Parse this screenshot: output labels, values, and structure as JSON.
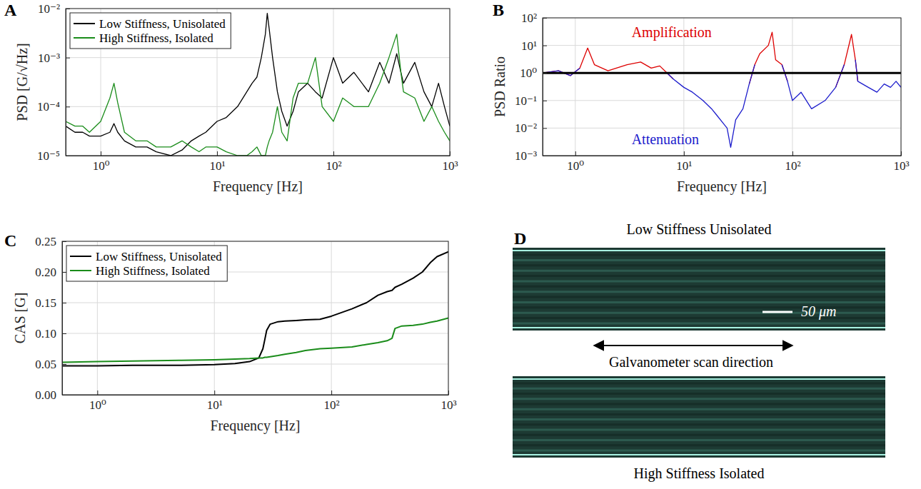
{
  "chart_data": [
    {
      "type": "line",
      "panel_label": "A",
      "xlabel": "Frequency [Hz]",
      "ylabel": "PSD [G/√Hz]",
      "log": true,
      "grid": true,
      "legend": "top-left",
      "xlim": [
        0.5,
        1000
      ],
      "xticks": [
        {
          "value": 1,
          "label": "10⁰"
        },
        {
          "value": 10,
          "label": "10¹"
        },
        {
          "value": 100,
          "label": "10²"
        },
        {
          "value": 1000,
          "label": "10³"
        }
      ],
      "ylim": [
        1e-05,
        0.01
      ],
      "yticks": [
        {
          "value": 1e-05,
          "label": "10⁻⁵"
        },
        {
          "value": 0.0001,
          "label": "10⁻⁴"
        },
        {
          "value": 0.001,
          "label": "10⁻³"
        },
        {
          "value": 0.01,
          "label": "10⁻²"
        }
      ],
      "x": [
        0.5,
        0.6,
        0.7,
        0.8,
        1.0,
        1.2,
        1.3,
        1.4,
        1.6,
        2,
        2.5,
        3,
        4,
        5,
        6,
        7,
        8,
        10,
        12,
        15,
        18,
        20,
        22,
        24,
        26,
        27,
        28,
        30,
        33,
        36,
        40,
        45,
        50,
        60,
        70,
        80,
        100,
        120,
        150,
        200,
        250,
        300,
        350,
        380,
        400,
        500,
        600,
        700,
        800,
        900,
        1000
      ],
      "series": [
        {
          "name": "Low Stiffness, Unisolated",
          "color": "#000000",
          "values": [
            4e-05,
            3e-05,
            3e-05,
            2.5e-05,
            2.5e-05,
            3e-05,
            4.5e-05,
            3e-05,
            2e-05,
            1.5e-05,
            1.5e-05,
            1.2e-05,
            1e-05,
            1.3e-05,
            2e-05,
            2.5e-05,
            3e-05,
            5e-05,
            6e-05,
            0.0001,
            0.0002,
            0.0003,
            0.0004,
            0.001,
            0.003,
            0.008,
            0.004,
            0.001,
            0.0002,
            8e-05,
            4e-05,
            8e-05,
            0.0002,
            0.0003,
            0.0002,
            0.00015,
            0.001,
            0.0003,
            0.0005,
            0.0002,
            0.0008,
            0.0003,
            0.0012,
            0.0005,
            0.0003,
            0.0008,
            0.0002,
            0.0001,
            0.0003,
            0.0001,
            4e-05
          ]
        },
        {
          "name": "High Stiffness, Isolated",
          "color": "#1a8c1a",
          "values": [
            5e-05,
            4e-05,
            4e-05,
            3e-05,
            5e-05,
            0.00015,
            0.0003,
            0.00012,
            3e-05,
            2e-05,
            2e-05,
            1.5e-05,
            1.5e-05,
            2e-05,
            1.5e-05,
            1.2e-05,
            1.5e-05,
            1.5e-05,
            1.2e-05,
            1e-05,
            1e-05,
            1.2e-05,
            1.5e-05,
            1e-05,
            1e-05,
            1.5e-05,
            2e-05,
            3e-05,
            0.0001,
            3e-05,
            2e-05,
            0.00015,
            0.0003,
            0.0003,
            0.001,
            0.0001,
            5e-05,
            0.00015,
            0.0001,
            0.0001,
            0.0003,
            0.001,
            0.003,
            0.0005,
            0.0002,
            0.00015,
            5e-05,
            0.0001,
            5e-05,
            3e-05,
            2e-05
          ]
        }
      ]
    },
    {
      "type": "line",
      "panel_label": "B",
      "xlabel": "Frequency [Hz]",
      "ylabel": "PSD Ratio",
      "log": true,
      "grid": true,
      "xlim": [
        0.5,
        1000
      ],
      "xticks": [
        {
          "value": 1,
          "label": "10⁰"
        },
        {
          "value": 10,
          "label": "10¹"
        },
        {
          "value": 100,
          "label": "10²"
        },
        {
          "value": 1000,
          "label": "10³"
        }
      ],
      "ylim": [
        0.001,
        100
      ],
      "yticks": [
        {
          "value": 0.001,
          "label": "10⁻³"
        },
        {
          "value": 0.01,
          "label": "10⁻²"
        },
        {
          "value": 0.1,
          "label": "10⁻¹"
        },
        {
          "value": 1,
          "label": "10⁰"
        },
        {
          "value": 10,
          "label": "10¹"
        },
        {
          "value": 100,
          "label": "10²"
        }
      ],
      "reference_line": 1,
      "annotations": [
        {
          "text": "Amplification",
          "color": "#dd0000",
          "x": 3.3,
          "y": 30
        },
        {
          "text": "Attenuation",
          "color": "#1c1ccc",
          "x": 3.3,
          "y": 0.004
        }
      ],
      "x": [
        0.5,
        0.7,
        0.9,
        1.1,
        1.3,
        1.5,
        2,
        3,
        4,
        5,
        6,
        7,
        8,
        10,
        12,
        15,
        18,
        20,
        25,
        27,
        30,
        35,
        40,
        45,
        50,
        60,
        65,
        70,
        80,
        90,
        100,
        120,
        150,
        200,
        250,
        300,
        350,
        380,
        400,
        500,
        600,
        700,
        800,
        900,
        1000
      ],
      "series": [
        {
          "color": "#dd0000",
          "values": [
            1,
            1.2,
            0.8,
            1.5,
            8,
            2,
            1.2,
            2,
            2.5,
            1.5,
            1.8,
            1,
            0.6,
            null,
            null,
            null,
            null,
            null,
            null,
            null,
            null,
            null,
            0.4,
            2,
            5,
            10,
            30,
            3,
            2,
            0.5,
            null,
            null,
            null,
            null,
            0.3,
            2,
            25,
            3,
            0.5,
            null,
            null,
            null,
            null,
            null,
            null
          ]
        },
        {
          "color": "#1c1ccc",
          "values": [
            1,
            1.2,
            0.8,
            1.5,
            null,
            null,
            null,
            null,
            null,
            null,
            null,
            1,
            0.6,
            0.3,
            0.2,
            0.1,
            0.05,
            0.03,
            0.01,
            0.002,
            0.02,
            0.05,
            0.4,
            2,
            null,
            null,
            null,
            null,
            2,
            0.5,
            0.1,
            0.2,
            0.05,
            0.1,
            0.3,
            2,
            null,
            3,
            0.5,
            0.3,
            0.2,
            0.4,
            0.3,
            0.5,
            0.3
          ]
        }
      ]
    },
    {
      "type": "line",
      "panel_label": "C",
      "xlabel": "Frequency [Hz]",
      "ylabel": "CAS [G]",
      "log": "x",
      "grid": true,
      "legend": "top-left",
      "xlim": [
        0.5,
        1000
      ],
      "xticks": [
        {
          "value": 1,
          "label": "10⁰"
        },
        {
          "value": 10,
          "label": "10¹"
        },
        {
          "value": 100,
          "label": "10²"
        },
        {
          "value": 1000,
          "label": "10³"
        }
      ],
      "ylim": [
        0,
        0.25
      ],
      "yticks": [
        {
          "value": 0,
          "label": "0.00"
        },
        {
          "value": 0.05,
          "label": "0.05"
        },
        {
          "value": 0.1,
          "label": "0.10"
        },
        {
          "value": 0.15,
          "label": "0.15"
        },
        {
          "value": 0.2,
          "label": "0.20"
        },
        {
          "value": 0.25,
          "label": "0.25"
        }
      ],
      "x": [
        0.5,
        1,
        2,
        5,
        10,
        15,
        20,
        24,
        26,
        27,
        28,
        30,
        35,
        40,
        50,
        60,
        80,
        100,
        150,
        200,
        250,
        300,
        330,
        350,
        400,
        500,
        600,
        700,
        800,
        1000
      ],
      "series": [
        {
          "name": "Low Stiffness, Unisolated",
          "color": "#000000",
          "values": [
            0.047,
            0.047,
            0.048,
            0.048,
            0.049,
            0.051,
            0.054,
            0.06,
            0.075,
            0.09,
            0.105,
            0.115,
            0.119,
            0.12,
            0.121,
            0.122,
            0.123,
            0.128,
            0.14,
            0.15,
            0.162,
            0.168,
            0.17,
            0.175,
            0.18,
            0.19,
            0.2,
            0.215,
            0.225,
            0.233
          ]
        },
        {
          "name": "High Stiffness, Isolated",
          "color": "#1a8c1a",
          "values": [
            0.053,
            0.054,
            0.055,
            0.056,
            0.057,
            0.058,
            0.059,
            0.06,
            0.06,
            0.061,
            0.061,
            0.062,
            0.064,
            0.066,
            0.069,
            0.072,
            0.075,
            0.076,
            0.078,
            0.082,
            0.085,
            0.088,
            0.092,
            0.108,
            0.112,
            0.113,
            0.115,
            0.118,
            0.12,
            0.125
          ]
        }
      ]
    }
  ],
  "panel_d": {
    "panel_label": "D",
    "top_caption": "Low Stiffness Unisolated",
    "scale_bar": "50 μm",
    "arrow_label": "Galvanometer scan direction",
    "bottom_caption": "High Stiffness Isolated"
  }
}
